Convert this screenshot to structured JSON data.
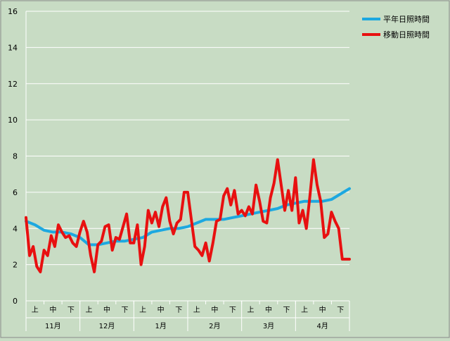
{
  "chart_data": {
    "type": "line",
    "title": "",
    "xlabel": "",
    "ylabel": "",
    "ylim": [
      0,
      16
    ],
    "yticks": [
      0,
      2,
      4,
      6,
      8,
      10,
      12,
      14,
      16
    ],
    "grid": true,
    "legend_position": "top-right",
    "months": [
      "11月",
      "12月",
      "1月",
      "2月",
      "3月",
      "4月"
    ],
    "periods": [
      "上",
      "中",
      "下"
    ],
    "colors": {
      "background": "#c8dcc4",
      "grid": "#ffffff",
      "normal": "#1da8e0",
      "moving": "#e81010"
    },
    "series": [
      {
        "name": "平年日照時間",
        "color": "#1da8e0",
        "x": [
          0,
          5,
          10,
          15,
          20,
          25,
          30,
          35,
          40,
          45,
          50,
          55,
          60,
          65,
          70,
          75,
          80,
          85,
          90,
          95,
          100,
          105,
          110,
          115,
          120,
          125,
          130,
          135,
          140,
          145,
          150,
          155,
          160,
          165,
          170,
          175,
          180
        ],
        "values": [
          4.4,
          4.2,
          3.9,
          3.8,
          3.8,
          3.7,
          3.5,
          3.1,
          3.1,
          3.2,
          3.3,
          3.3,
          3.4,
          3.5,
          3.8,
          3.9,
          4.0,
          4.0,
          4.1,
          4.3,
          4.5,
          4.5,
          4.5,
          4.6,
          4.7,
          4.8,
          4.9,
          5.0,
          5.1,
          5.3,
          5.4,
          5.5,
          5.5,
          5.5,
          5.6,
          5.9,
          6.2
        ]
      },
      {
        "name": "移動日照時間",
        "color": "#e81010",
        "x": [
          0,
          2,
          4,
          6,
          8,
          10,
          12,
          14,
          16,
          18,
          20,
          22,
          24,
          26,
          28,
          30,
          32,
          34,
          36,
          38,
          40,
          42,
          44,
          46,
          48,
          50,
          52,
          54,
          56,
          58,
          60,
          62,
          64,
          66,
          68,
          70,
          72,
          74,
          76,
          78,
          80,
          82,
          84,
          86,
          88,
          90,
          92,
          94,
          96,
          98,
          100,
          102,
          104,
          106,
          108,
          110,
          112,
          114,
          116,
          118,
          120,
          122,
          124,
          126,
          128,
          130,
          132,
          134,
          136,
          138,
          140,
          142,
          144,
          146,
          148,
          150,
          152,
          154,
          156,
          158,
          160,
          162,
          164,
          166,
          168,
          170,
          172,
          174,
          176,
          178,
          180
        ],
        "values": [
          4.6,
          2.5,
          3.0,
          1.9,
          1.6,
          2.8,
          2.5,
          3.6,
          3.0,
          4.2,
          3.8,
          3.5,
          3.6,
          3.2,
          3.0,
          3.8,
          4.4,
          3.8,
          2.5,
          1.6,
          3.1,
          3.3,
          4.1,
          4.2,
          2.8,
          3.5,
          3.4,
          4.1,
          4.8,
          3.2,
          3.2,
          4.2,
          2.0,
          3.0,
          5.0,
          4.3,
          4.9,
          4.1,
          5.2,
          5.7,
          4.4,
          3.7,
          4.3,
          4.5,
          6.0,
          6.0,
          4.5,
          3.0,
          2.8,
          2.5,
          3.2,
          2.2,
          3.2,
          4.4,
          4.5,
          5.8,
          6.2,
          5.3,
          6.1,
          4.8,
          5.0,
          4.7,
          5.2,
          4.8,
          6.4,
          5.5,
          4.4,
          4.3,
          5.7,
          6.5,
          7.8,
          6.4,
          5.0,
          6.1,
          5.0,
          6.8,
          4.3,
          5.0,
          4.0,
          5.8,
          7.8,
          6.4,
          5.5,
          3.5,
          3.7,
          4.9,
          4.4,
          4.0,
          2.3,
          2.3,
          2.3
        ]
      }
    ]
  }
}
